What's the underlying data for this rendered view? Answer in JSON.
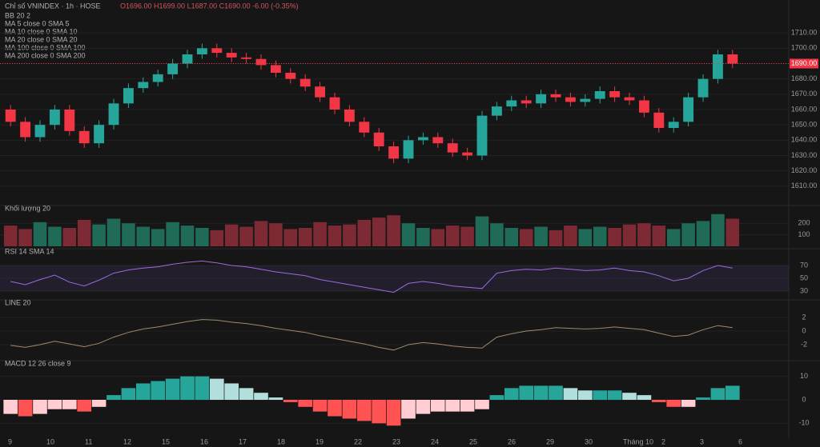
{
  "header": {
    "title": "Chỉ số VNINDEX · 1h · HOSE",
    "ohlc": "O1696.00 H1699.00 L1687.00 C1690.00 -6.00 (-0.35%)",
    "indicators": [
      "BB 20 2",
      "MA 5 close 0 SMA 5",
      "MA 10 close 0 SMA 10",
      "MA 20 close 0 SMA 20",
      "MA 100 close 0 SMA 100",
      "MA 200 close 0 SMA 200"
    ]
  },
  "time_labels": [
    "9",
    "10",
    "11",
    "12",
    "15",
    "16",
    "17",
    "18",
    "19",
    "22",
    "23",
    "24",
    "25",
    "26",
    "29",
    "30",
    "Tháng 10",
    "2",
    "3",
    "6"
  ],
  "chart_data": [
    {
      "type": "candlestick",
      "up_color": "#26a69a",
      "down_color": "#f23645",
      "ylim": [
        1600,
        1720
      ],
      "yticks": [
        {
          "value": 1610,
          "label": "1610.00"
        },
        {
          "value": 1620,
          "label": "1620.00"
        },
        {
          "value": 1630,
          "label": "1630.00"
        },
        {
          "value": 1640,
          "label": "1640.00"
        },
        {
          "value": 1650,
          "label": "1650.00"
        },
        {
          "value": 1660,
          "label": "1660.00"
        },
        {
          "value": 1670,
          "label": "1670.00"
        },
        {
          "value": 1680,
          "label": "1680.00"
        },
        {
          "value": 1690,
          "label": "1690.00"
        },
        {
          "value": 1700,
          "label": "1700.00"
        },
        {
          "value": 1710,
          "label": "1710.00"
        }
      ],
      "open": [
        1660,
        1652,
        1642,
        1650,
        1660,
        1646,
        1638,
        1650,
        1664,
        1674,
        1678,
        1683,
        1690,
        1696,
        1700,
        1697,
        1694,
        1693,
        1689,
        1684,
        1680,
        1675,
        1668,
        1660,
        1652,
        1645,
        1636,
        1628,
        1640,
        1642,
        1638,
        1632,
        1630,
        1656,
        1662,
        1666,
        1664,
        1670,
        1668,
        1665,
        1667,
        1672,
        1668,
        1666,
        1658,
        1648,
        1652,
        1668,
        1680,
        1696
      ],
      "high": [
        1663,
        1655,
        1653,
        1663,
        1663,
        1649,
        1653,
        1667,
        1677,
        1681,
        1686,
        1693,
        1699,
        1703,
        1703,
        1700,
        1697,
        1696,
        1692,
        1687,
        1683,
        1678,
        1671,
        1663,
        1655,
        1648,
        1639,
        1643,
        1645,
        1645,
        1641,
        1635,
        1659,
        1665,
        1669,
        1669,
        1673,
        1673,
        1671,
        1670,
        1675,
        1675,
        1671,
        1669,
        1661,
        1655,
        1671,
        1683,
        1699,
        1699
      ],
      "low": [
        1649,
        1639,
        1639,
        1647,
        1643,
        1635,
        1635,
        1647,
        1661,
        1671,
        1675,
        1680,
        1687,
        1693,
        1694,
        1691,
        1690,
        1686,
        1681,
        1677,
        1672,
        1665,
        1657,
        1649,
        1642,
        1633,
        1625,
        1625,
        1637,
        1635,
        1629,
        1627,
        1627,
        1653,
        1659,
        1661,
        1661,
        1665,
        1662,
        1662,
        1664,
        1665,
        1663,
        1655,
        1645,
        1645,
        1649,
        1665,
        1677,
        1687
      ],
      "close": [
        1652,
        1642,
        1650,
        1660,
        1646,
        1638,
        1650,
        1664,
        1674,
        1678,
        1683,
        1690,
        1696,
        1700,
        1697,
        1694,
        1693,
        1689,
        1684,
        1680,
        1675,
        1668,
        1660,
        1652,
        1645,
        1636,
        1628,
        1640,
        1642,
        1638,
        1632,
        1630,
        1656,
        1662,
        1666,
        1664,
        1670,
        1668,
        1665,
        1667,
        1672,
        1668,
        1666,
        1658,
        1648,
        1652,
        1668,
        1680,
        1696,
        1690
      ],
      "last_price": {
        "value": 1690,
        "label": "1690.00"
      }
    },
    {
      "type": "bar",
      "title": "Khối lượng 20",
      "up_color": "#1f6b58",
      "down_color": "#7d2a35",
      "ylim": [
        0,
        320
      ],
      "yticks": [
        100,
        200
      ],
      "values": [
        180,
        150,
        210,
        170,
        160,
        230,
        190,
        240,
        200,
        170,
        150,
        210,
        180,
        160,
        140,
        190,
        170,
        220,
        200,
        150,
        160,
        210,
        180,
        190,
        230,
        250,
        270,
        200,
        160,
        150,
        180,
        170,
        260,
        200,
        160,
        150,
        170,
        140,
        180,
        150,
        170,
        160,
        190,
        200,
        180,
        150,
        200,
        220,
        280,
        240
      ]
    },
    {
      "type": "line",
      "title": "RSI 14 SMA 14",
      "color": "#9c6ade",
      "band": [
        30,
        70
      ],
      "ylim": [
        20,
        90
      ],
      "yticks": [
        30,
        50,
        70
      ],
      "values": [
        45,
        40,
        48,
        55,
        44,
        38,
        47,
        58,
        63,
        66,
        68,
        72,
        75,
        77,
        74,
        70,
        68,
        64,
        60,
        57,
        54,
        48,
        44,
        40,
        36,
        32,
        28,
        42,
        45,
        42,
        38,
        36,
        34,
        58,
        62,
        64,
        63,
        66,
        64,
        62,
        63,
        66,
        62,
        60,
        54,
        46,
        50,
        62,
        70,
        66
      ]
    },
    {
      "type": "line",
      "title": "LINE 20",
      "color": "#a08a6a",
      "ylim": [
        -4,
        4
      ],
      "yticks": [
        -2,
        0,
        2
      ],
      "values": [
        -2.1,
        -2.4,
        -2.0,
        -1.5,
        -1.9,
        -2.3,
        -1.8,
        -0.9,
        -0.2,
        0.3,
        0.6,
        1.0,
        1.4,
        1.7,
        1.6,
        1.3,
        1.1,
        0.8,
        0.4,
        0.1,
        -0.2,
        -0.7,
        -1.1,
        -1.5,
        -1.9,
        -2.4,
        -2.8,
        -2.0,
        -1.7,
        -1.9,
        -2.2,
        -2.4,
        -2.5,
        -0.9,
        -0.4,
        0.0,
        0.2,
        0.5,
        0.4,
        0.3,
        0.4,
        0.6,
        0.4,
        0.2,
        -0.3,
        -0.8,
        -0.6,
        0.2,
        0.8,
        0.5
      ]
    },
    {
      "type": "histogram",
      "title": "MACD 12 26 close 9",
      "ylim": [
        -15,
        15
      ],
      "yticks": [
        -10,
        0,
        10
      ],
      "values": [
        -6,
        -7,
        -6,
        -4,
        -4,
        -5,
        -3,
        2,
        5,
        7,
        8,
        9,
        10,
        10,
        9,
        7,
        5,
        3,
        1,
        -1,
        -3,
        -5,
        -7,
        -8,
        -9,
        -10,
        -11,
        -8,
        -6,
        -5,
        -5,
        -5,
        -4,
        2,
        5,
        6,
        6,
        6,
        5,
        4,
        4,
        4,
        3,
        2,
        -1,
        -3,
        -3,
        1,
        5,
        6
      ]
    }
  ]
}
